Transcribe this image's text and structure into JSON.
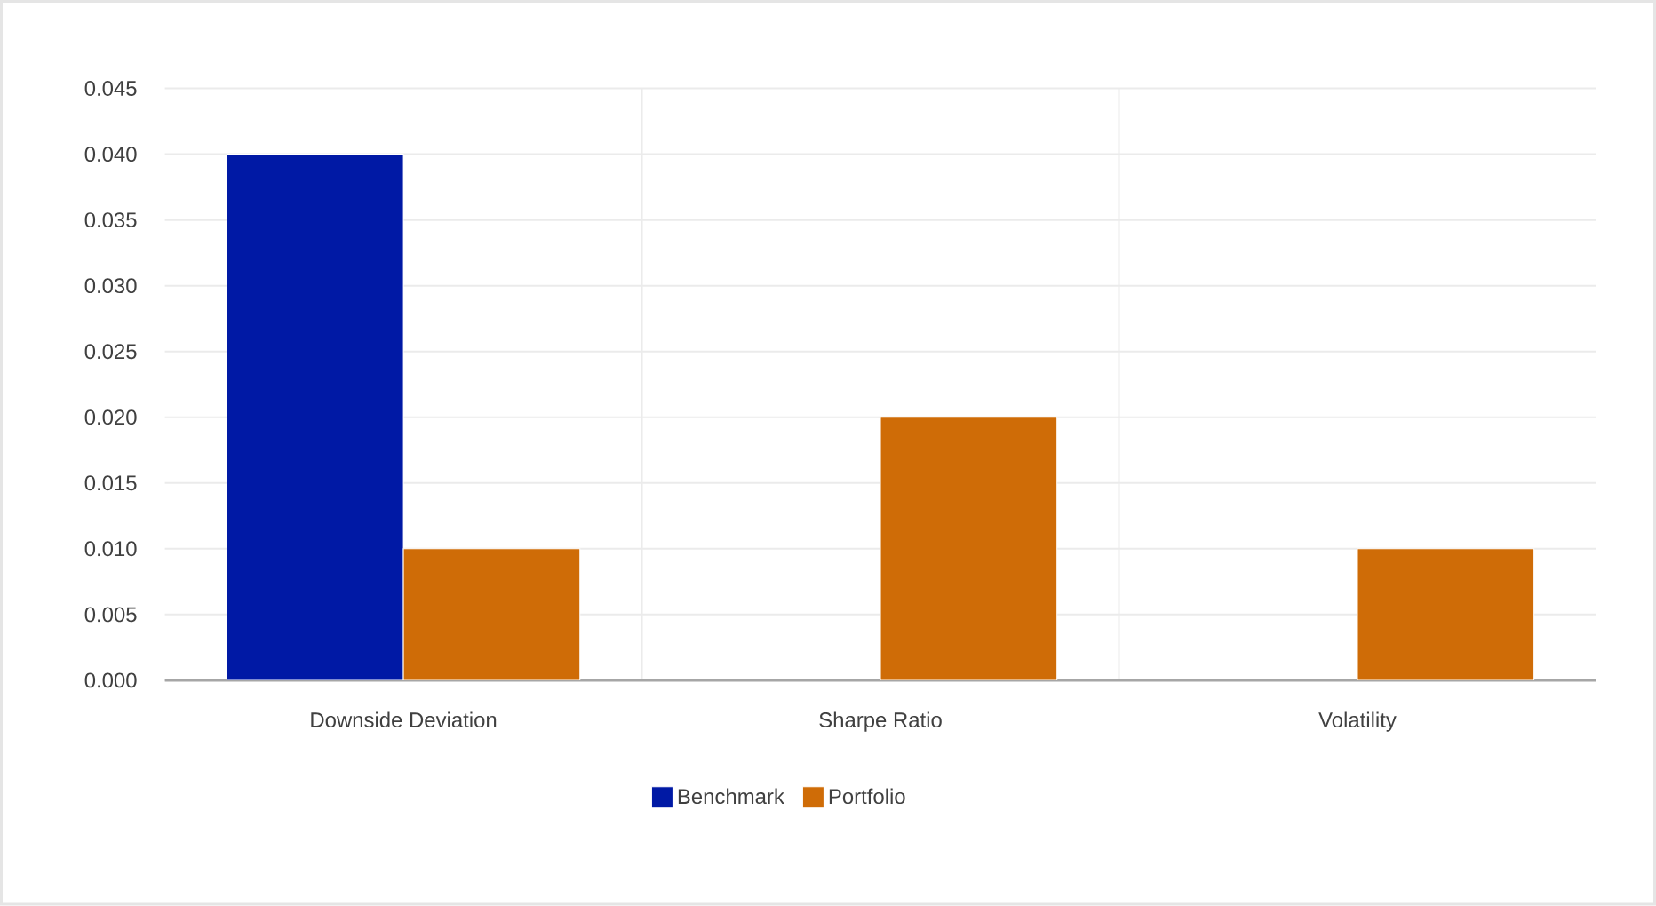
{
  "chart_data": {
    "type": "bar",
    "categories": [
      "Downside Deviation",
      "Sharpe Ratio",
      "Volatility"
    ],
    "series": [
      {
        "name": "Benchmark",
        "color": "#0019a5",
        "values": [
          0.04,
          null,
          null
        ]
      },
      {
        "name": "Portfolio",
        "color": "#cf6c07",
        "values": [
          0.01,
          0.02,
          0.01
        ]
      }
    ],
    "ylim": [
      0,
      0.045
    ],
    "yticks": [
      {
        "value": 0,
        "label": "0.000"
      },
      {
        "value": 0.005,
        "label": "0.005"
      },
      {
        "value": 0.01,
        "label": "0.010"
      },
      {
        "value": 0.015,
        "label": "0.015"
      },
      {
        "value": 0.02,
        "label": "0.020"
      },
      {
        "value": 0.025,
        "label": "0.025"
      },
      {
        "value": 0.03,
        "label": "0.030"
      },
      {
        "value": 0.035,
        "label": "0.035"
      },
      {
        "value": 0.04,
        "label": "0.040"
      },
      {
        "value": 0.045,
        "label": "0.045"
      }
    ],
    "grid": true,
    "legend": "bottom"
  }
}
